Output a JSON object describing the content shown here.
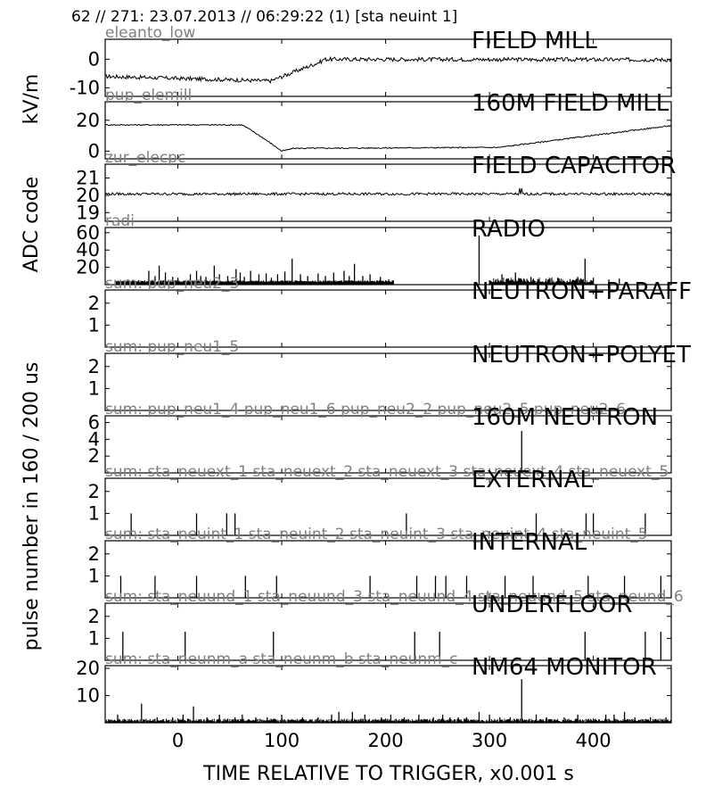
{
  "header": "62 // 271:   23.07.2013 // 06:29:22 (1)  [sta neuint 1]",
  "colors": {
    "axis": "#000000",
    "trace": "#000000",
    "channel_label": "#808080"
  },
  "chart_data": {
    "type": "line",
    "xlabel": "TIME RELATIVE TO TRIGGER,   x0.001 s",
    "xlim": [
      -70,
      475
    ],
    "xticks": [
      0,
      100,
      200,
      300,
      400
    ],
    "ylabel_groups": [
      {
        "text": "kV/m",
        "panels": [
          0,
          1
        ]
      },
      {
        "text": "ADC code",
        "panels": [
          2,
          3
        ]
      },
      {
        "text": "pulse number in 160 / 200 us",
        "panels": [
          4,
          5,
          6,
          7,
          8,
          9,
          10
        ]
      }
    ],
    "panels": [
      {
        "title": "FIELD MILL",
        "channel": "eleanto_low",
        "ylim": [
          -13,
          7
        ],
        "yticks": [
          -10,
          0
        ],
        "style": "line",
        "shape": "fm1"
      },
      {
        "title": "160M FIELD MILL",
        "channel": "pup_elemill",
        "ylim": [
          -5,
          32
        ],
        "yticks": [
          0,
          20
        ],
        "style": "line",
        "shape": "fm2"
      },
      {
        "title": "FIELD CAPACITOR",
        "channel": "zur_elecpc",
        "ylim": [
          18.5,
          21.8
        ],
        "yticks": [
          19,
          20,
          21
        ],
        "style": "line",
        "shape": "cap"
      },
      {
        "title": "RADIO",
        "channel": "radi",
        "ylim": [
          0,
          66
        ],
        "yticks": [
          20,
          40,
          60
        ],
        "style": "spike",
        "shape": "radio",
        "spikes": [
          [
            -48,
            6
          ],
          [
            -28,
            16
          ],
          [
            -22,
            10
          ],
          [
            -18,
            22
          ],
          [
            -12,
            14
          ],
          [
            -5,
            9
          ],
          [
            0,
            8
          ],
          [
            12,
            12
          ],
          [
            18,
            16
          ],
          [
            22,
            10
          ],
          [
            27,
            9
          ],
          [
            35,
            22
          ],
          [
            40,
            12
          ],
          [
            48,
            10
          ],
          [
            56,
            18
          ],
          [
            60,
            14
          ],
          [
            64,
            9
          ],
          [
            70,
            16
          ],
          [
            78,
            12
          ],
          [
            85,
            13
          ],
          [
            90,
            8
          ],
          [
            96,
            12
          ],
          [
            103,
            15
          ],
          [
            110,
            30
          ],
          [
            118,
            12
          ],
          [
            125,
            10
          ],
          [
            135,
            13
          ],
          [
            142,
            10
          ],
          [
            150,
            14
          ],
          [
            160,
            16
          ],
          [
            165,
            10
          ],
          [
            170,
            24
          ],
          [
            178,
            10
          ],
          [
            185,
            12
          ],
          [
            195,
            9
          ],
          [
            203,
            6
          ],
          [
            290,
            57
          ],
          [
            312,
            12
          ],
          [
            325,
            14
          ],
          [
            340,
            9
          ],
          [
            360,
            8
          ],
          [
            385,
            9
          ],
          [
            392,
            30
          ],
          [
            400,
            8
          ],
          [
            415,
            6
          ],
          [
            425,
            7
          ]
        ]
      },
      {
        "title": "NEUTRON+PARAFF",
        "channel": "sum: pup_neu2_3",
        "ylim": [
          0,
          2.6
        ],
        "yticks": [
          1,
          2
        ],
        "style": "spike",
        "spikes": []
      },
      {
        "title": "NEUTRON+POLYET",
        "channel": "sum: pup_neu1_5",
        "ylim": [
          0,
          2.6
        ],
        "yticks": [
          1,
          2
        ],
        "style": "spike",
        "spikes": []
      },
      {
        "title": "160M NEUTRON",
        "channel": "sum: pup_neu1_4 pup_neu1_6 pup_neu2_2 pup_neu2_5 pup_neu2_6",
        "ylim": [
          0,
          6.8
        ],
        "yticks": [
          2,
          4,
          6
        ],
        "style": "spike",
        "spikes": [
          [
            331,
            5
          ]
        ]
      },
      {
        "title": "EXTERNAL",
        "channel": "sum: sta_neuext_1 sta_neuext_2 sta_neuext_3 sta_neuext_4 sta_neuext_5",
        "ylim": [
          0,
          2.6
        ],
        "yticks": [
          1,
          2
        ],
        "style": "spike",
        "spikes": [
          [
            -45,
            1
          ],
          [
            18,
            1
          ],
          [
            47,
            1
          ],
          [
            55,
            1
          ],
          [
            220,
            1
          ],
          [
            345,
            1
          ],
          [
            393,
            1
          ],
          [
            400,
            1
          ],
          [
            450,
            1
          ]
        ]
      },
      {
        "title": "INTERNAL",
        "channel": "sum: sta_neuint_1 sta_neuint_2 sta_neuint_3 sta_neuint_4 sta_neuint_5",
        "ylim": [
          0,
          2.6
        ],
        "yticks": [
          1,
          2
        ],
        "style": "spike",
        "spikes": [
          [
            -55,
            1
          ],
          [
            -22,
            1
          ],
          [
            18,
            1
          ],
          [
            65,
            1
          ],
          [
            95,
            1
          ],
          [
            185,
            1
          ],
          [
            230,
            1
          ],
          [
            248,
            1
          ],
          [
            258,
            1
          ],
          [
            278,
            1
          ],
          [
            315,
            1
          ],
          [
            342,
            1
          ],
          [
            395,
            1
          ],
          [
            430,
            1
          ],
          [
            465,
            1
          ]
        ]
      },
      {
        "title": "UNDERFLOOR",
        "channel": "sum: sta_neuund_1 sta_neuund_3 sta_neuund_4 sta_neuund_5 sta_neund_6",
        "ylim": [
          0,
          2.6
        ],
        "yticks": [
          1,
          2
        ],
        "style": "spike",
        "spikes": [
          [
            -53,
            1.3
          ],
          [
            7,
            1.3
          ],
          [
            92,
            1.3
          ],
          [
            228,
            1.3
          ],
          [
            252,
            1.3
          ],
          [
            392,
            1.3
          ],
          [
            450,
            1.3
          ],
          [
            465,
            1.3
          ]
        ]
      },
      {
        "title": "NM64 MONITOR",
        "channel": "sum: sta_neunm_a sta_neunm_b sta_neunm_c",
        "ylim": [
          0,
          21
        ],
        "yticks": [
          10,
          20
        ],
        "style": "spike",
        "shape": "nm",
        "spikes": [
          [
            -58,
            3
          ],
          [
            -35,
            7
          ],
          [
            -20,
            2
          ],
          [
            -5,
            2
          ],
          [
            5,
            3
          ],
          [
            15,
            6
          ],
          [
            28,
            2
          ],
          [
            40,
            3
          ],
          [
            55,
            2
          ],
          [
            62,
            3
          ],
          [
            75,
            2
          ],
          [
            86,
            2
          ],
          [
            100,
            3
          ],
          [
            120,
            2
          ],
          [
            135,
            2
          ],
          [
            148,
            3
          ],
          [
            155,
            4
          ],
          [
            168,
            4
          ],
          [
            180,
            3
          ],
          [
            196,
            2
          ],
          [
            205,
            3
          ],
          [
            218,
            2
          ],
          [
            232,
            3
          ],
          [
            246,
            2
          ],
          [
            255,
            3
          ],
          [
            262,
            2
          ],
          [
            270,
            2
          ],
          [
            278,
            2
          ],
          [
            290,
            4
          ],
          [
            300,
            3
          ],
          [
            310,
            2
          ],
          [
            320,
            2
          ],
          [
            331,
            16
          ],
          [
            345,
            3
          ],
          [
            355,
            2
          ],
          [
            372,
            2
          ],
          [
            385,
            3
          ],
          [
            412,
            3
          ],
          [
            420,
            3
          ],
          [
            430,
            4
          ],
          [
            440,
            2
          ],
          [
            455,
            2
          ],
          [
            470,
            2
          ]
        ]
      }
    ]
  }
}
